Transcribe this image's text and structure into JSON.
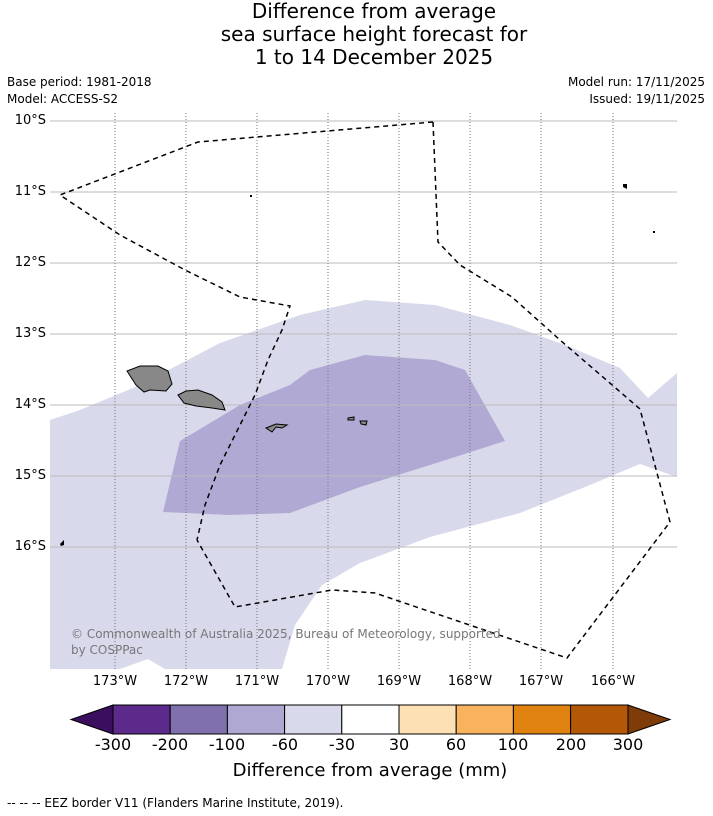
{
  "title": {
    "line1": "Difference from average",
    "line2": "sea surface height forecast for",
    "line3": "1 to 14 December 2025"
  },
  "meta_left": {
    "base_period": "Base period: 1981-2018",
    "model": "Model: ACCESS-S2"
  },
  "meta_right": {
    "model_run": "Model run: 17/11/2025",
    "issued": "Issued: 19/11/2025"
  },
  "latitude_labels": [
    "10°S",
    "11°S",
    "12°S",
    "13°S",
    "14°S",
    "15°S",
    "16°S"
  ],
  "longitude_labels": [
    "173°W",
    "172°W",
    "171°W",
    "170°W",
    "169°W",
    "168°W",
    "167°W",
    "166°W"
  ],
  "colorbar": {
    "tick_labels": [
      "-300",
      "-200",
      "-100",
      "-60",
      "-30",
      "30",
      "60",
      "100",
      "200",
      "300"
    ],
    "label": "Difference from average (mm)",
    "colors": [
      "#3b0f5e",
      "#5b2a8a",
      "#8070ae",
      "#aea8d2",
      "#d9d9ec",
      "#ffffff",
      "#fde0b4",
      "#f9b35f",
      "#e0820f",
      "#b35806",
      "#7f3b08"
    ]
  },
  "map_fill_colors": {
    "light": "#d9d9ec",
    "medium": "#b0a9d3",
    "land": "#888888"
  },
  "credit": "© Commonwealth of Australia 2025, Bureau of Meteorology, supported by COSPPac",
  "legend": "--  --  -- EEZ border V11 (Flanders Marine Institute, 2019)."
}
